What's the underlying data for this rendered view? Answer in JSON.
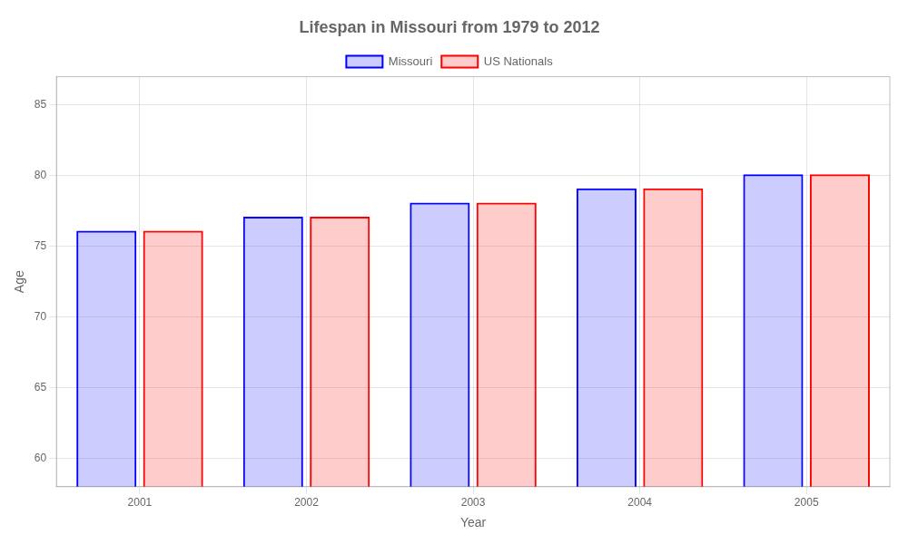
{
  "chart_data": {
    "type": "bar",
    "title": "Lifespan in Missouri from 1979 to 2012",
    "x_label": "Year",
    "y_label": "Age",
    "categories": [
      "2001",
      "2002",
      "2003",
      "2004",
      "2005"
    ],
    "series": [
      {
        "name": "Missouri",
        "color": "#0000ff",
        "values": [
          76.1,
          77.1,
          78.1,
          79.1,
          80.1
        ]
      },
      {
        "name": "US Nationals",
        "color": "#ff0000",
        "values": [
          76.1,
          77.1,
          78.1,
          79.1,
          80.1
        ]
      }
    ],
    "ylim": [
      58,
      87
    ],
    "yticks": [
      60,
      65,
      70,
      75,
      80,
      85
    ],
    "grid": true,
    "legend": "top"
  }
}
